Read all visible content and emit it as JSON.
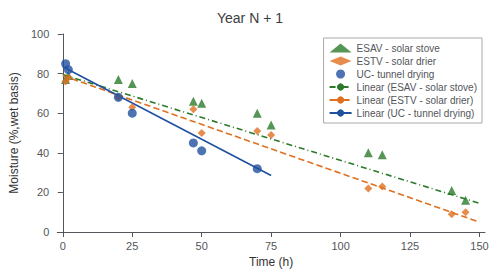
{
  "chart_data": {
    "type": "scatter",
    "title": "Year N + 1",
    "xlabel": "Time (h)",
    "ylabel": "Moisture (%,wet basis)",
    "xlim": [
      -2,
      152
    ],
    "ylim": [
      0,
      100
    ],
    "xticks": [
      0,
      25,
      50,
      75,
      100,
      125,
      150
    ],
    "yticks": [
      0,
      20,
      40,
      60,
      80,
      100
    ],
    "grid": false,
    "legend": "upper right",
    "series": [
      {
        "name": "ESAV - solar stove",
        "type": "scatter",
        "color": "#2a7a2a",
        "marker": "triangle",
        "x": [
          1,
          2,
          20,
          25,
          47,
          50,
          70,
          75,
          110,
          115,
          140,
          145
        ],
        "values": [
          77,
          79,
          77,
          75,
          66,
          65,
          60,
          54,
          40,
          39,
          21,
          16
        ]
      },
      {
        "name": "ESTV - solar drier",
        "type": "scatter",
        "color": "#e07020",
        "marker": "diamond",
        "x": [
          1,
          2,
          20,
          25,
          47,
          50,
          70,
          75,
          110,
          115,
          140,
          145
        ],
        "values": [
          76,
          78,
          68,
          63,
          62,
          50,
          51,
          49,
          22,
          23,
          9,
          10
        ]
      },
      {
        "name": "UC- tunnel drying",
        "type": "scatter",
        "color": "#2050a0",
        "marker": "circle",
        "x": [
          1,
          2,
          20,
          25,
          47,
          50,
          70
        ],
        "values": [
          85,
          82,
          68,
          60,
          45,
          41,
          32
        ]
      },
      {
        "name": "Linear (ESAV - solar stove)",
        "type": "line",
        "color": "#2a7a2a",
        "line_style": "dashdot",
        "x": [
          0,
          150
        ],
        "values": [
          79.5,
          14.5
        ]
      },
      {
        "name": "Linear (ESTV - solar drier)",
        "type": "line",
        "color": "#e07020",
        "line_style": "dashed",
        "x": [
          0,
          150
        ],
        "values": [
          79.0,
          5.0
        ]
      },
      {
        "name": "Linear (UC - tunnel drying)",
        "type": "line",
        "color": "#2050a0",
        "line_style": "solid",
        "x": [
          0,
          75
        ],
        "values": [
          83.5,
          28.5
        ]
      }
    ]
  }
}
